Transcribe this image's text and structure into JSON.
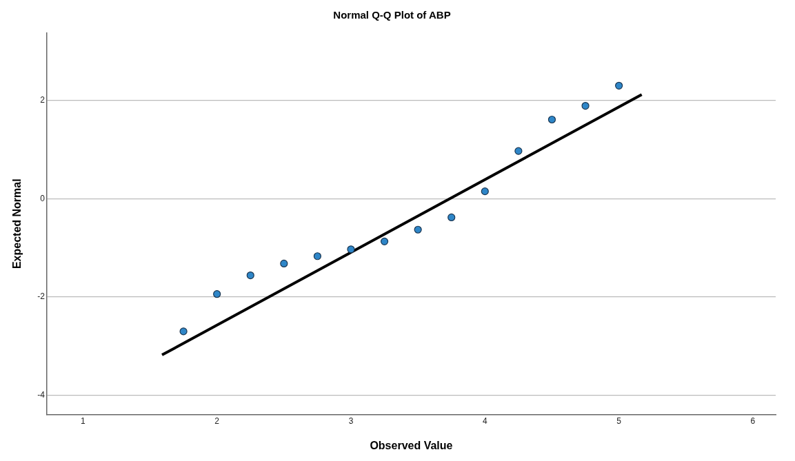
{
  "chart_data": {
    "type": "scatter",
    "title": "Normal Q-Q Plot of ABP",
    "xlabel": "Observed Value",
    "ylabel": "Expected Normal",
    "xlim": [
      0.73,
      6.17
    ],
    "xticks": [
      1,
      2,
      3,
      4,
      5,
      6
    ],
    "ylim": [
      -4.39,
      3.37
    ],
    "yticks": [
      -4,
      -2,
      0,
      2
    ],
    "grid": "y",
    "marker": "circle",
    "series": [
      {
        "color": "#2e86c8",
        "x": [
          1.75,
          2,
          2.25,
          2.5,
          2.75,
          3,
          3.25,
          3.5,
          3.75,
          4,
          4.25,
          4.5,
          4.75,
          5
        ],
        "values": [
          -2.7,
          -1.94,
          -1.56,
          -1.32,
          -1.17,
          -1.03,
          -0.87,
          -0.63,
          -0.38,
          0.15,
          0.97,
          1.61,
          1.89,
          2.3
        ]
      },
      {
        "type": "line",
        "color": "#000000",
        "marker": "none",
        "line_style": "solid",
        "x": [
          1.59,
          5.17
        ],
        "values": [
          -3.18,
          2.12
        ]
      }
    ]
  }
}
